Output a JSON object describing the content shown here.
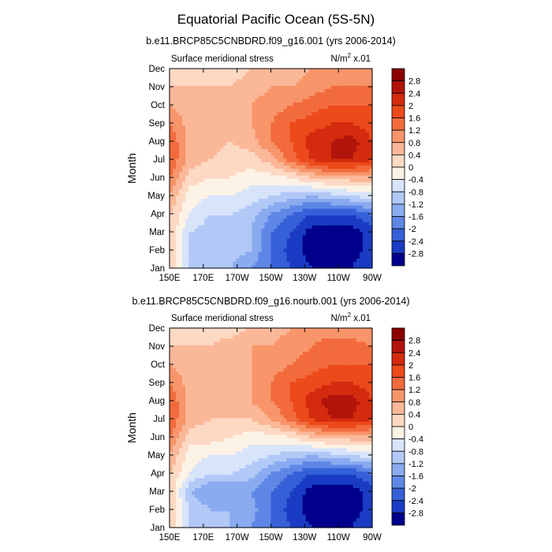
{
  "figure": {
    "title": "Equatorial Pacific Ocean (5S-5N)"
  },
  "chart_data": [
    {
      "type": "heatmap",
      "title": "b.e11.BRCP85C5CNBDRD.f09_g16.001 (yrs 2006-2014)",
      "left_label": "Surface meridional stress",
      "units_text": "N/m",
      "units_sup": "2",
      "units_scale": " x.01",
      "ylabel": "Month",
      "x_ticks": [
        "150E",
        "170E",
        "170W",
        "150W",
        "130W",
        "110W",
        "90W"
      ],
      "y_ticks": [
        "Jan",
        "Feb",
        "Mar",
        "Apr",
        "May",
        "Jun",
        "Jul",
        "Aug",
        "Sep",
        "Oct",
        "Nov",
        "Dec"
      ],
      "x_range": [
        "150E",
        "90W"
      ],
      "values": [
        [
          0.4,
          -0.8,
          -1.0,
          -1.2,
          -1.6,
          -2.0,
          -2.4,
          -2.8,
          -2.8,
          -2.8,
          -2.4
        ],
        [
          0.4,
          -0.8,
          -1.0,
          -1.0,
          -1.2,
          -2.0,
          -2.6,
          -3.0,
          -3.0,
          -3.0,
          -2.6
        ],
        [
          0.4,
          -0.8,
          -1.0,
          -1.0,
          -1.2,
          -2.0,
          -2.4,
          -3.0,
          -3.0,
          -3.0,
          -2.6
        ],
        [
          0.4,
          -0.4,
          -0.8,
          -0.8,
          -1.0,
          -1.6,
          -2.0,
          -2.4,
          -2.4,
          -2.4,
          -2.0
        ],
        [
          0.8,
          -0.2,
          -0.4,
          -0.4,
          -0.6,
          -0.8,
          -1.0,
          -1.2,
          -1.0,
          -0.8,
          -0.6
        ],
        [
          1.2,
          0.2,
          0.0,
          0.0,
          -0.2,
          -0.2,
          0.0,
          0.4,
          0.6,
          0.6,
          0.6
        ],
        [
          1.6,
          0.6,
          0.4,
          0.2,
          0.2,
          0.6,
          1.4,
          2.0,
          2.4,
          2.4,
          2.0
        ],
        [
          1.6,
          0.6,
          0.6,
          0.4,
          0.6,
          1.2,
          1.6,
          2.2,
          2.4,
          2.6,
          2.0
        ],
        [
          1.2,
          0.6,
          0.6,
          0.6,
          0.8,
          1.2,
          1.6,
          1.8,
          2.0,
          2.0,
          1.8
        ],
        [
          0.8,
          0.6,
          0.6,
          0.6,
          0.8,
          1.0,
          1.2,
          1.4,
          1.6,
          1.6,
          1.6
        ],
        [
          0.4,
          0.4,
          0.4,
          0.4,
          0.6,
          0.8,
          0.8,
          1.0,
          1.2,
          1.2,
          1.2
        ],
        [
          0.0,
          0.2,
          0.2,
          0.2,
          0.4,
          0.6,
          0.6,
          0.8,
          0.8,
          0.8,
          0.8
        ]
      ]
    },
    {
      "type": "heatmap",
      "title": "b.e11.BRCP85C5CNBDRD.f09_g16.nourb.001 (yrs 2006-2014)",
      "left_label": "Surface meridional stress",
      "units_text": "N/m",
      "units_sup": "2",
      "units_scale": " x.01",
      "ylabel": "Month",
      "x_ticks": [
        "150E",
        "170E",
        "170W",
        "150W",
        "130W",
        "110W",
        "90W"
      ],
      "y_ticks": [
        "Jan",
        "Feb",
        "Mar",
        "Apr",
        "May",
        "Jun",
        "Jul",
        "Aug",
        "Sep",
        "Oct",
        "Nov",
        "Dec"
      ],
      "x_range": [
        "150E",
        "90W"
      ],
      "values": [
        [
          0.4,
          -0.8,
          -1.0,
          -1.2,
          -1.6,
          -2.0,
          -2.4,
          -2.8,
          -2.8,
          -2.8,
          -2.4
        ],
        [
          0.4,
          -0.8,
          -1.2,
          -1.2,
          -1.4,
          -2.0,
          -2.6,
          -3.0,
          -3.0,
          -3.0,
          -2.6
        ],
        [
          0.4,
          -1.2,
          -1.6,
          -1.6,
          -1.6,
          -2.0,
          -2.4,
          -3.0,
          -3.0,
          -3.0,
          -2.6
        ],
        [
          0.4,
          -0.4,
          -0.8,
          -0.8,
          -1.0,
          -1.6,
          -2.0,
          -2.4,
          -2.4,
          -2.4,
          -2.0
        ],
        [
          0.8,
          -0.2,
          -0.4,
          -0.4,
          -0.6,
          -0.8,
          -1.0,
          -1.2,
          -1.0,
          -0.8,
          -0.6
        ],
        [
          1.2,
          0.2,
          0.2,
          0.0,
          -0.2,
          -0.2,
          0.0,
          0.4,
          0.6,
          0.6,
          0.6
        ],
        [
          1.6,
          0.6,
          0.4,
          0.4,
          0.4,
          0.8,
          1.4,
          2.0,
          2.4,
          2.4,
          2.0
        ],
        [
          1.6,
          0.6,
          0.6,
          0.6,
          0.8,
          1.2,
          1.6,
          2.2,
          2.6,
          2.6,
          2.0
        ],
        [
          1.2,
          0.6,
          0.6,
          0.6,
          0.8,
          1.2,
          1.6,
          1.8,
          2.0,
          2.0,
          1.8
        ],
        [
          0.8,
          0.6,
          0.6,
          0.6,
          0.8,
          1.0,
          1.2,
          1.4,
          1.6,
          1.6,
          1.6
        ],
        [
          0.4,
          0.4,
          0.4,
          0.6,
          0.8,
          0.8,
          1.0,
          1.2,
          1.4,
          1.4,
          1.2
        ],
        [
          0.0,
          0.2,
          0.2,
          0.2,
          0.4,
          0.6,
          0.8,
          1.0,
          1.0,
          1.0,
          0.8
        ]
      ]
    }
  ],
  "colorbar": {
    "labels": [
      "2.8",
      "2.4",
      "2",
      "1.6",
      "1.2",
      "0.8",
      "0.4",
      "0",
      "-0.4",
      "-0.8",
      "-1.2",
      "-1.6",
      "-2",
      "-2.4",
      "-2.8"
    ],
    "levels": [
      2.8,
      2.4,
      2.0,
      1.6,
      1.2,
      0.8,
      0.4,
      0.0,
      -0.4,
      -0.8,
      -1.2,
      -1.6,
      -2.0,
      -2.4,
      -2.8
    ],
    "colors": [
      "#8b0000",
      "#b2140b",
      "#d42b0f",
      "#ec4a1b",
      "#f26b3d",
      "#f8956a",
      "#fbb898",
      "#fdd9c3",
      "#fdf2e6",
      "#d8e4fa",
      "#b2c9f7",
      "#8aabf0",
      "#5e87e6",
      "#3560d8",
      "#1a3cc4",
      "#00008b"
    ]
  }
}
